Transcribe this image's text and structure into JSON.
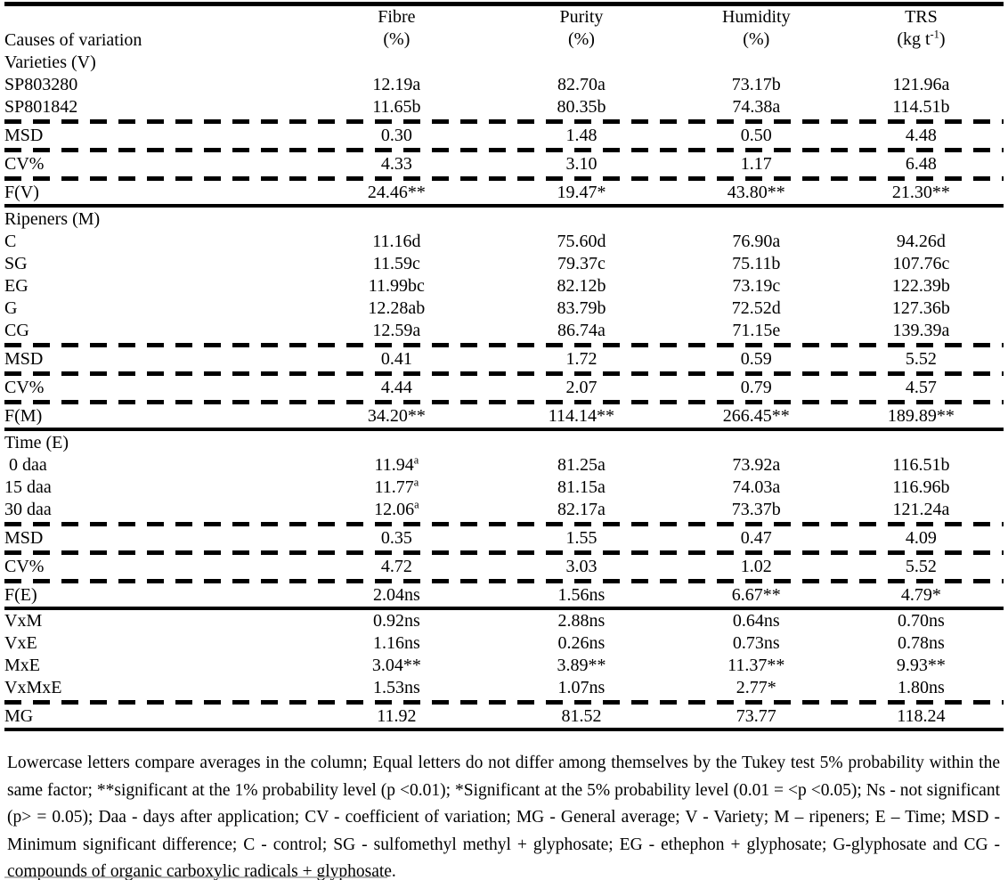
{
  "colors": {
    "text": "#000000",
    "background": "#ffffff",
    "rule": "#000000"
  },
  "table": {
    "header": {
      "label": "Causes of variation",
      "columns": [
        {
          "name": "fibre",
          "line1": "Fibre",
          "unit_pre": "(%)",
          "unit_sup": "",
          "unit_post": ""
        },
        {
          "name": "purity",
          "line1": "Purity",
          "unit_pre": "(%)",
          "unit_sup": "",
          "unit_post": ""
        },
        {
          "name": "humidity",
          "line1": "Humidity",
          "unit_pre": "(%)",
          "unit_sup": "",
          "unit_post": ""
        },
        {
          "name": "trs",
          "line1": "TRS",
          "unit_pre": "(kg t",
          "unit_sup": "-1",
          "unit_post": ")"
        }
      ]
    },
    "rows": [
      {
        "type": "section",
        "label": "Varieties (V)"
      },
      {
        "type": "data",
        "label": "SP803280",
        "cells": [
          "12.19a",
          "82.70a",
          "73.17b",
          "121.96a"
        ]
      },
      {
        "type": "data",
        "label": "SP801842",
        "cells": [
          "11.65b",
          "80.35b",
          "74.38a",
          "114.51b"
        ]
      },
      {
        "type": "dashed"
      },
      {
        "type": "data",
        "label": "MSD",
        "cells": [
          "0.30",
          "1.48",
          "0.50",
          "4.48"
        ]
      },
      {
        "type": "dashed"
      },
      {
        "type": "data",
        "label": "CV%",
        "cells": [
          "4.33",
          "3.10",
          "1.17",
          "6.48"
        ]
      },
      {
        "type": "dashed"
      },
      {
        "type": "data",
        "label": "F(V)",
        "cells": [
          "24.46**",
          "19.47*",
          "43.80**",
          "21.30**"
        ]
      },
      {
        "type": "solid"
      },
      {
        "type": "section",
        "label": "Ripeners (M)"
      },
      {
        "type": "data",
        "label": "C",
        "cells": [
          "11.16d",
          "75.60d",
          "76.90a",
          "94.26d"
        ]
      },
      {
        "type": "data",
        "label": "SG",
        "cells": [
          "11.59c",
          "79.37c",
          "75.11b",
          "107.76c"
        ]
      },
      {
        "type": "data",
        "label": "EG",
        "cells": [
          "11.99bc",
          "82.12b",
          "73.19c",
          "122.39b"
        ]
      },
      {
        "type": "data",
        "label": "G",
        "cells": [
          "12.28ab",
          "83.79b",
          "72.52d",
          "127.36b"
        ]
      },
      {
        "type": "data",
        "label": "CG",
        "cells": [
          "12.59a",
          "86.74a",
          "71.15e",
          "139.39a"
        ]
      },
      {
        "type": "dashed"
      },
      {
        "type": "data",
        "label": "MSD",
        "cells": [
          "0.41",
          "1.72",
          "0.59",
          "5.52"
        ]
      },
      {
        "type": "dashed"
      },
      {
        "type": "data",
        "label": "CV%",
        "cells": [
          "4.44",
          "2.07",
          "0.79",
          "4.57"
        ]
      },
      {
        "type": "dashed"
      },
      {
        "type": "data",
        "label": "F(M)",
        "cells": [
          "34.20**",
          "114.14**",
          "266.45**",
          "189.89**"
        ]
      },
      {
        "type": "solid"
      },
      {
        "type": "section",
        "label": "Time (E)"
      },
      {
        "type": "data",
        "label": " 0 daa",
        "cells": [
          {
            "text": "11.94",
            "sup": "a"
          },
          "81.25a",
          "73.92a",
          "116.51b"
        ]
      },
      {
        "type": "data",
        "label": "15 daa",
        "cells": [
          {
            "text": "11.77",
            "sup": "a"
          },
          "81.15a",
          "74.03a",
          "116.96b"
        ]
      },
      {
        "type": "data",
        "label": "30 daa",
        "cells": [
          {
            "text": "12.06",
            "sup": "a"
          },
          "82.17a",
          "73.37b",
          "121.24a"
        ]
      },
      {
        "type": "dashed"
      },
      {
        "type": "data",
        "label": "MSD",
        "cells": [
          "0.35",
          "1.55",
          "0.47",
          "4.09"
        ]
      },
      {
        "type": "dashed"
      },
      {
        "type": "data",
        "label": "CV%",
        "cells": [
          "4.72",
          "3.03",
          "1.02",
          "5.52"
        ]
      },
      {
        "type": "dashed"
      },
      {
        "type": "data",
        "label": "F(E)",
        "cells": [
          "2.04ns",
          "1.56ns",
          "6.67**",
          "4.79*"
        ]
      },
      {
        "type": "solid"
      },
      {
        "type": "data",
        "label": "VxM",
        "cells": [
          "0.92ns",
          "2.88ns",
          "0.64ns",
          "0.70ns"
        ]
      },
      {
        "type": "data",
        "label": "VxE",
        "cells": [
          "1.16ns",
          "0.26ns",
          "0.73ns",
          "0.78ns"
        ]
      },
      {
        "type": "data",
        "label": "MxE",
        "cells": [
          "3.04**",
          "3.89**",
          "11.37**",
          "9.93**"
        ]
      },
      {
        "type": "data",
        "label": "VxMxE",
        "cells": [
          "1.53ns",
          "1.07ns",
          "2.77*",
          "1.80ns"
        ]
      },
      {
        "type": "dashed"
      },
      {
        "type": "data",
        "label": "MG",
        "cells": [
          "11.92",
          "81.52",
          "73.77",
          "118.24"
        ]
      },
      {
        "type": "solid"
      }
    ]
  },
  "footnote": "Lowercase letters compare averages in the column; Equal letters do not differ among themselves by the Tukey test 5% probability within the same factor; **significant at the 1% probability level (p <0.01); *Significant at the 5% probability level (0.01 = <p <0.05); Ns - not significant (p> = 0.05); Daa - days after application; CV - coefficient of variation; MG - General average; V - Variety; M – ripeners; E – Time; MSD - Minimum significant difference; C - control; SG - sulfomethyl methyl + glyphosate; EG - ethephon + glyphosate; G-glyphosate and CG - compounds of organic carboxylic radicals + glyphosate."
}
